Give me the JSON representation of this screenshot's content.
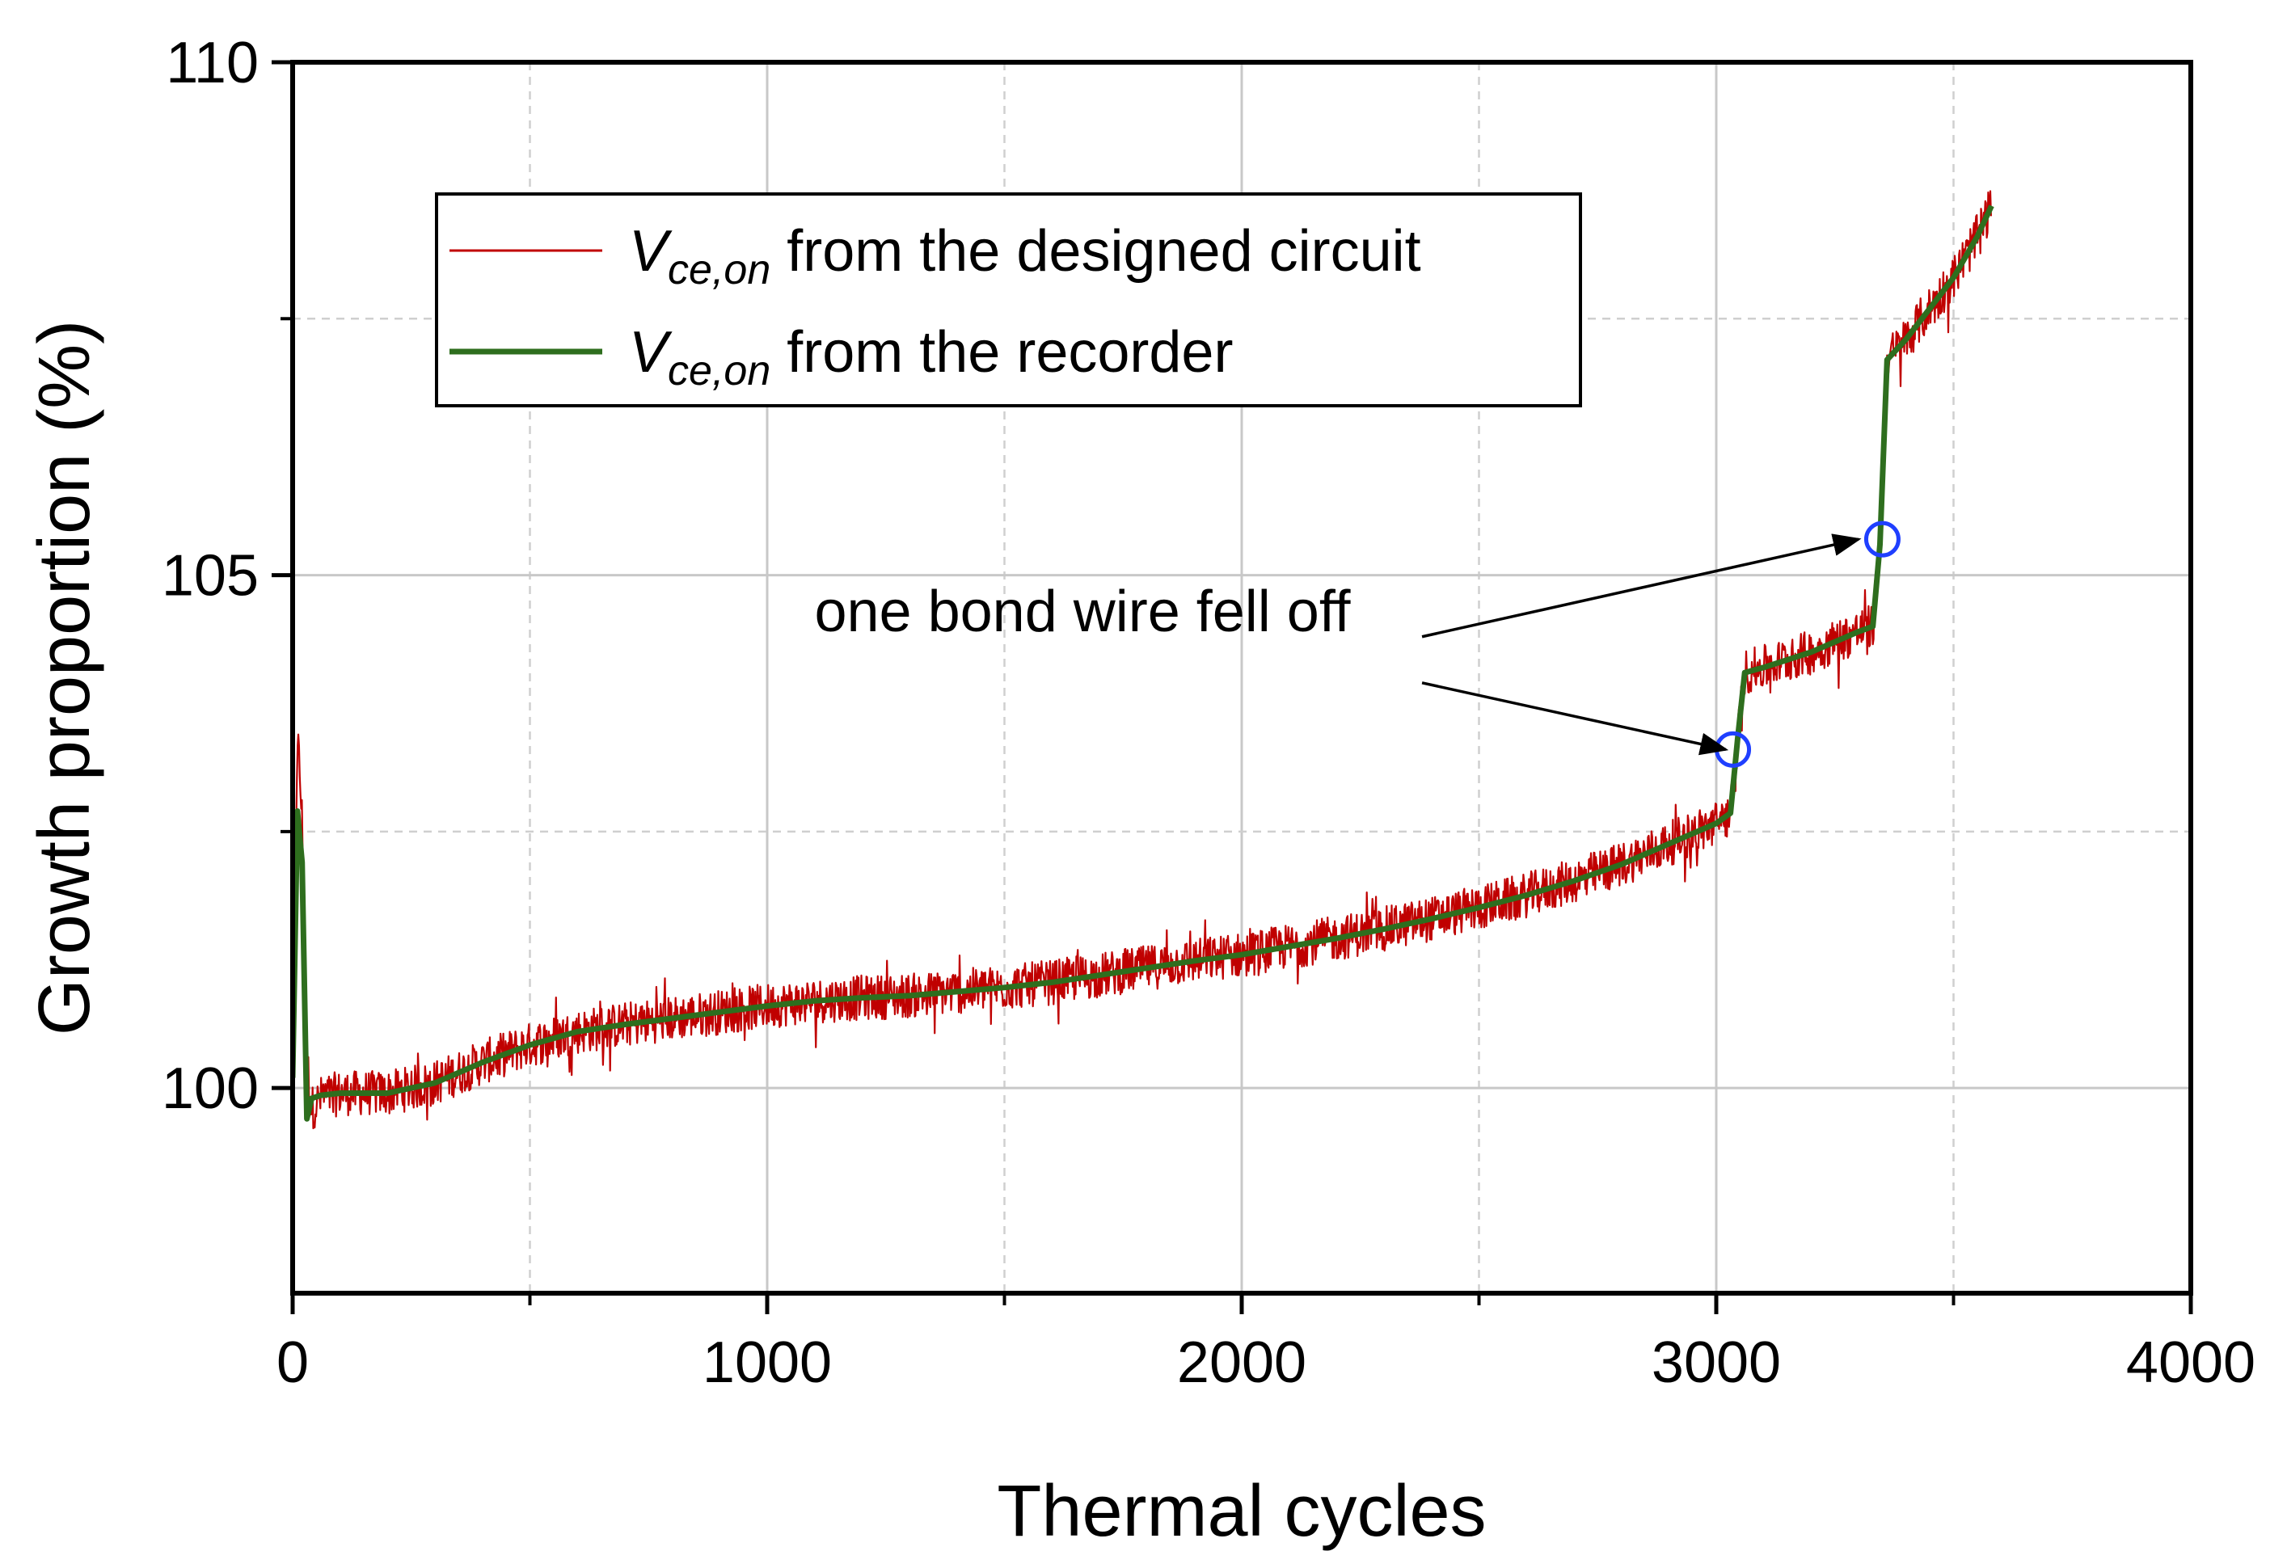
{
  "chart_data": {
    "type": "line",
    "xlabel": "Thermal cycles",
    "ylabel": "Growth proportion (%)",
    "xlim": [
      0,
      4000
    ],
    "ylim": [
      98,
      110
    ],
    "x_ticks": [
      0,
      1000,
      2000,
      3000,
      4000
    ],
    "x_tick_labels": [
      "0",
      "1000",
      "2000",
      "3000",
      "4000"
    ],
    "x_minor_ticks": [
      500,
      1500,
      2500,
      3500
    ],
    "y_ticks": [
      100,
      105,
      110
    ],
    "y_tick_labels": [
      "100",
      "105",
      "110"
    ],
    "y_minor_ticks": [
      102.5,
      107.5
    ],
    "grid": true,
    "legend_position": "top-left",
    "series": [
      {
        "name_main": "V",
        "name_sub": "ce,on",
        "name_rest": " from the designed circuit",
        "color": "#c00000",
        "style": "noisy",
        "x": [
          0,
          10,
          20,
          30,
          40,
          60,
          100,
          150,
          200,
          300,
          400,
          500,
          600,
          700,
          800,
          900,
          1000,
          1100,
          1200,
          1300,
          1400,
          1500,
          1600,
          1700,
          1800,
          1900,
          2000,
          2100,
          2200,
          2300,
          2400,
          2500,
          2600,
          2700,
          2800,
          2900,
          3000,
          3030,
          3045,
          3060,
          3100,
          3200,
          3300,
          3330,
          3345,
          3360,
          3400,
          3450,
          3500,
          3550,
          3580
        ],
        "y": [
          100.1,
          103.5,
          102.6,
          100.3,
          99.8,
          99.9,
          99.95,
          99.95,
          99.95,
          100.05,
          100.25,
          100.42,
          100.55,
          100.62,
          100.68,
          100.74,
          100.8,
          100.85,
          100.88,
          100.9,
          100.94,
          100.98,
          101.03,
          101.1,
          101.17,
          101.24,
          101.3,
          101.38,
          101.46,
          101.55,
          101.65,
          101.76,
          101.88,
          102.02,
          102.18,
          102.38,
          102.58,
          102.68,
          103.4,
          104.05,
          104.1,
          104.25,
          104.45,
          104.5,
          105.3,
          107.1,
          107.3,
          107.6,
          107.9,
          108.3,
          108.6
        ]
      },
      {
        "name_main": "V",
        "name_sub": "ce,on",
        "name_rest": " from the recorder",
        "color": "#2e6e1e",
        "style": "smooth",
        "x": [
          0,
          10,
          20,
          30,
          40,
          60,
          100,
          150,
          200,
          300,
          400,
          500,
          600,
          700,
          800,
          900,
          1000,
          1100,
          1200,
          1300,
          1400,
          1500,
          1600,
          1700,
          1800,
          1900,
          2000,
          2100,
          2200,
          2300,
          2400,
          2500,
          2600,
          2700,
          2800,
          2900,
          3000,
          3030,
          3045,
          3060,
          3100,
          3200,
          3300,
          3330,
          3345,
          3360,
          3400,
          3450,
          3500,
          3550,
          3580
        ],
        "y": [
          100.1,
          102.7,
          102.2,
          99.7,
          99.9,
          99.93,
          99.95,
          99.95,
          99.95,
          100.05,
          100.25,
          100.42,
          100.55,
          100.62,
          100.68,
          100.74,
          100.8,
          100.85,
          100.88,
          100.9,
          100.94,
          100.98,
          101.03,
          101.1,
          101.17,
          101.24,
          101.3,
          101.38,
          101.46,
          101.55,
          101.65,
          101.76,
          101.88,
          102.02,
          102.18,
          102.38,
          102.58,
          102.68,
          103.4,
          104.05,
          104.1,
          104.25,
          104.45,
          104.5,
          105.3,
          107.1,
          107.3,
          107.6,
          107.9,
          108.3,
          108.6
        ]
      }
    ],
    "markers": [
      {
        "x": 3035,
        "y": 103.3,
        "color": "#1f3fff"
      },
      {
        "x": 3350,
        "y": 105.35,
        "color": "#1f3fff"
      }
    ],
    "annotation": {
      "text": "one bond wire fell off",
      "text_x": 1000,
      "text_y": 104.65,
      "arrows": [
        {
          "from": [
            2380,
            104.4
          ],
          "to": [
            3300,
            105.35
          ]
        },
        {
          "from": [
            2380,
            103.95
          ],
          "to": [
            3020,
            103.3
          ]
        }
      ]
    }
  }
}
